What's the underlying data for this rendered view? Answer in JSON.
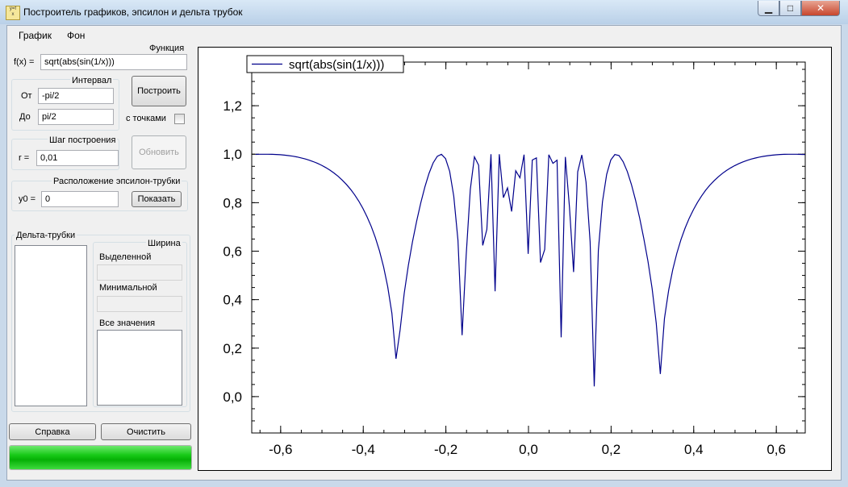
{
  "window": {
    "title": "Построитель графиков, эпсилон и дельта трубок",
    "icon": "graph-app-icon"
  },
  "menu": {
    "items": [
      "График",
      "Фон"
    ]
  },
  "function_section": {
    "label": "Функция",
    "fx_label": "f(x) =",
    "fx_value": "sqrt(abs(sin(1/x)))"
  },
  "interval": {
    "title": "Интервал",
    "from_label": "От",
    "from_value": "-pi/2",
    "to_label": "До",
    "to_value": "pi/2"
  },
  "build_button": "Построить",
  "points_checkbox": {
    "label": "с точками",
    "checked": false
  },
  "step": {
    "title": "Шаг построения",
    "r_label": "r =",
    "r_value": "0,01"
  },
  "update_button": "Обновить",
  "epsilon": {
    "title": "Расположение эпсилон-трубки",
    "y0_label": "y0 =",
    "y0_value": "0",
    "show_button": "Показать"
  },
  "delta": {
    "title": "Дельта-трубки",
    "width_title": "Ширина",
    "selected_label": "Выделенной",
    "selected_value": "",
    "min_label": "Минимальной",
    "min_value": "",
    "all_label": "Все значения"
  },
  "help_button": "Справка",
  "clear_button": "Очистить",
  "progress": 1.0,
  "chart_data": {
    "type": "line",
    "title": "",
    "xlabel": "",
    "ylabel": "",
    "xlim": [
      -0.67,
      0.67
    ],
    "ylim": [
      -0.15,
      1.38
    ],
    "x_ticks": [
      -0.6,
      -0.4,
      -0.2,
      0.0,
      0.2,
      0.4,
      0.6
    ],
    "x_tick_labels": [
      "-0,6",
      "-0,4",
      "-0,2",
      "0,0",
      "0,2",
      "0,4",
      "0,6"
    ],
    "y_ticks": [
      0.0,
      0.2,
      0.4,
      0.6,
      0.8,
      1.0,
      1.2
    ],
    "y_tick_labels": [
      "0,0",
      "0,2",
      "0,4",
      "0,6",
      "0,8",
      "1,0",
      "1,2"
    ],
    "grid": false,
    "legend": "top-left",
    "series": [
      {
        "name": "sqrt(abs(sin(1/x)))",
        "color": "#00008b",
        "expression": "sqrt(abs(sin(1/x)))",
        "x_start": -1.5708,
        "x_end": 1.5708,
        "step": 0.01
      }
    ]
  },
  "colors": {
    "plot_line": "#00008b",
    "progress": "#16c916"
  }
}
